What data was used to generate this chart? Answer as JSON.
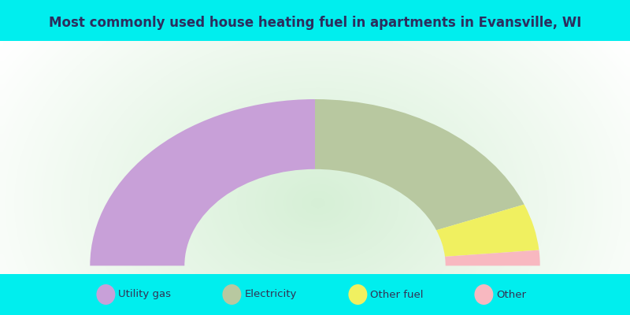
{
  "title": "Most commonly used house heating fuel in apartments in Evansville, WI",
  "title_color": "#2d2d5e",
  "cyan_color": "#00eeee",
  "chart_bg_color": "#e8f5e0",
  "segments": [
    {
      "label": "Utility gas",
      "value": 50,
      "color": "#c8a0d8"
    },
    {
      "label": "Electricity",
      "value": 38,
      "color": "#b8c8a0"
    },
    {
      "label": "Other fuel",
      "value": 9,
      "color": "#f0f060"
    },
    {
      "label": "Other",
      "value": 3,
      "color": "#f8b8c0"
    }
  ],
  "outer_r": 1.0,
  "inner_r": 0.58,
  "figsize": [
    8,
    4
  ],
  "dpi": 100
}
